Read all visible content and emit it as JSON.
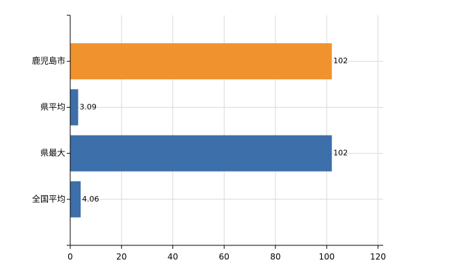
{
  "chart_data": {
    "type": "barh",
    "categories": [
      "鹿児島市",
      "県平均",
      "県最大",
      "全国平均"
    ],
    "values": [
      102,
      3.09,
      102,
      4.06
    ],
    "colors": [
      "#f0932e",
      "#3d6faa",
      "#3d6faa",
      "#3d6faa"
    ],
    "xlim": [
      0,
      122
    ],
    "xticks": [
      0,
      20,
      40,
      60,
      80,
      100,
      120
    ],
    "grid": true
  }
}
